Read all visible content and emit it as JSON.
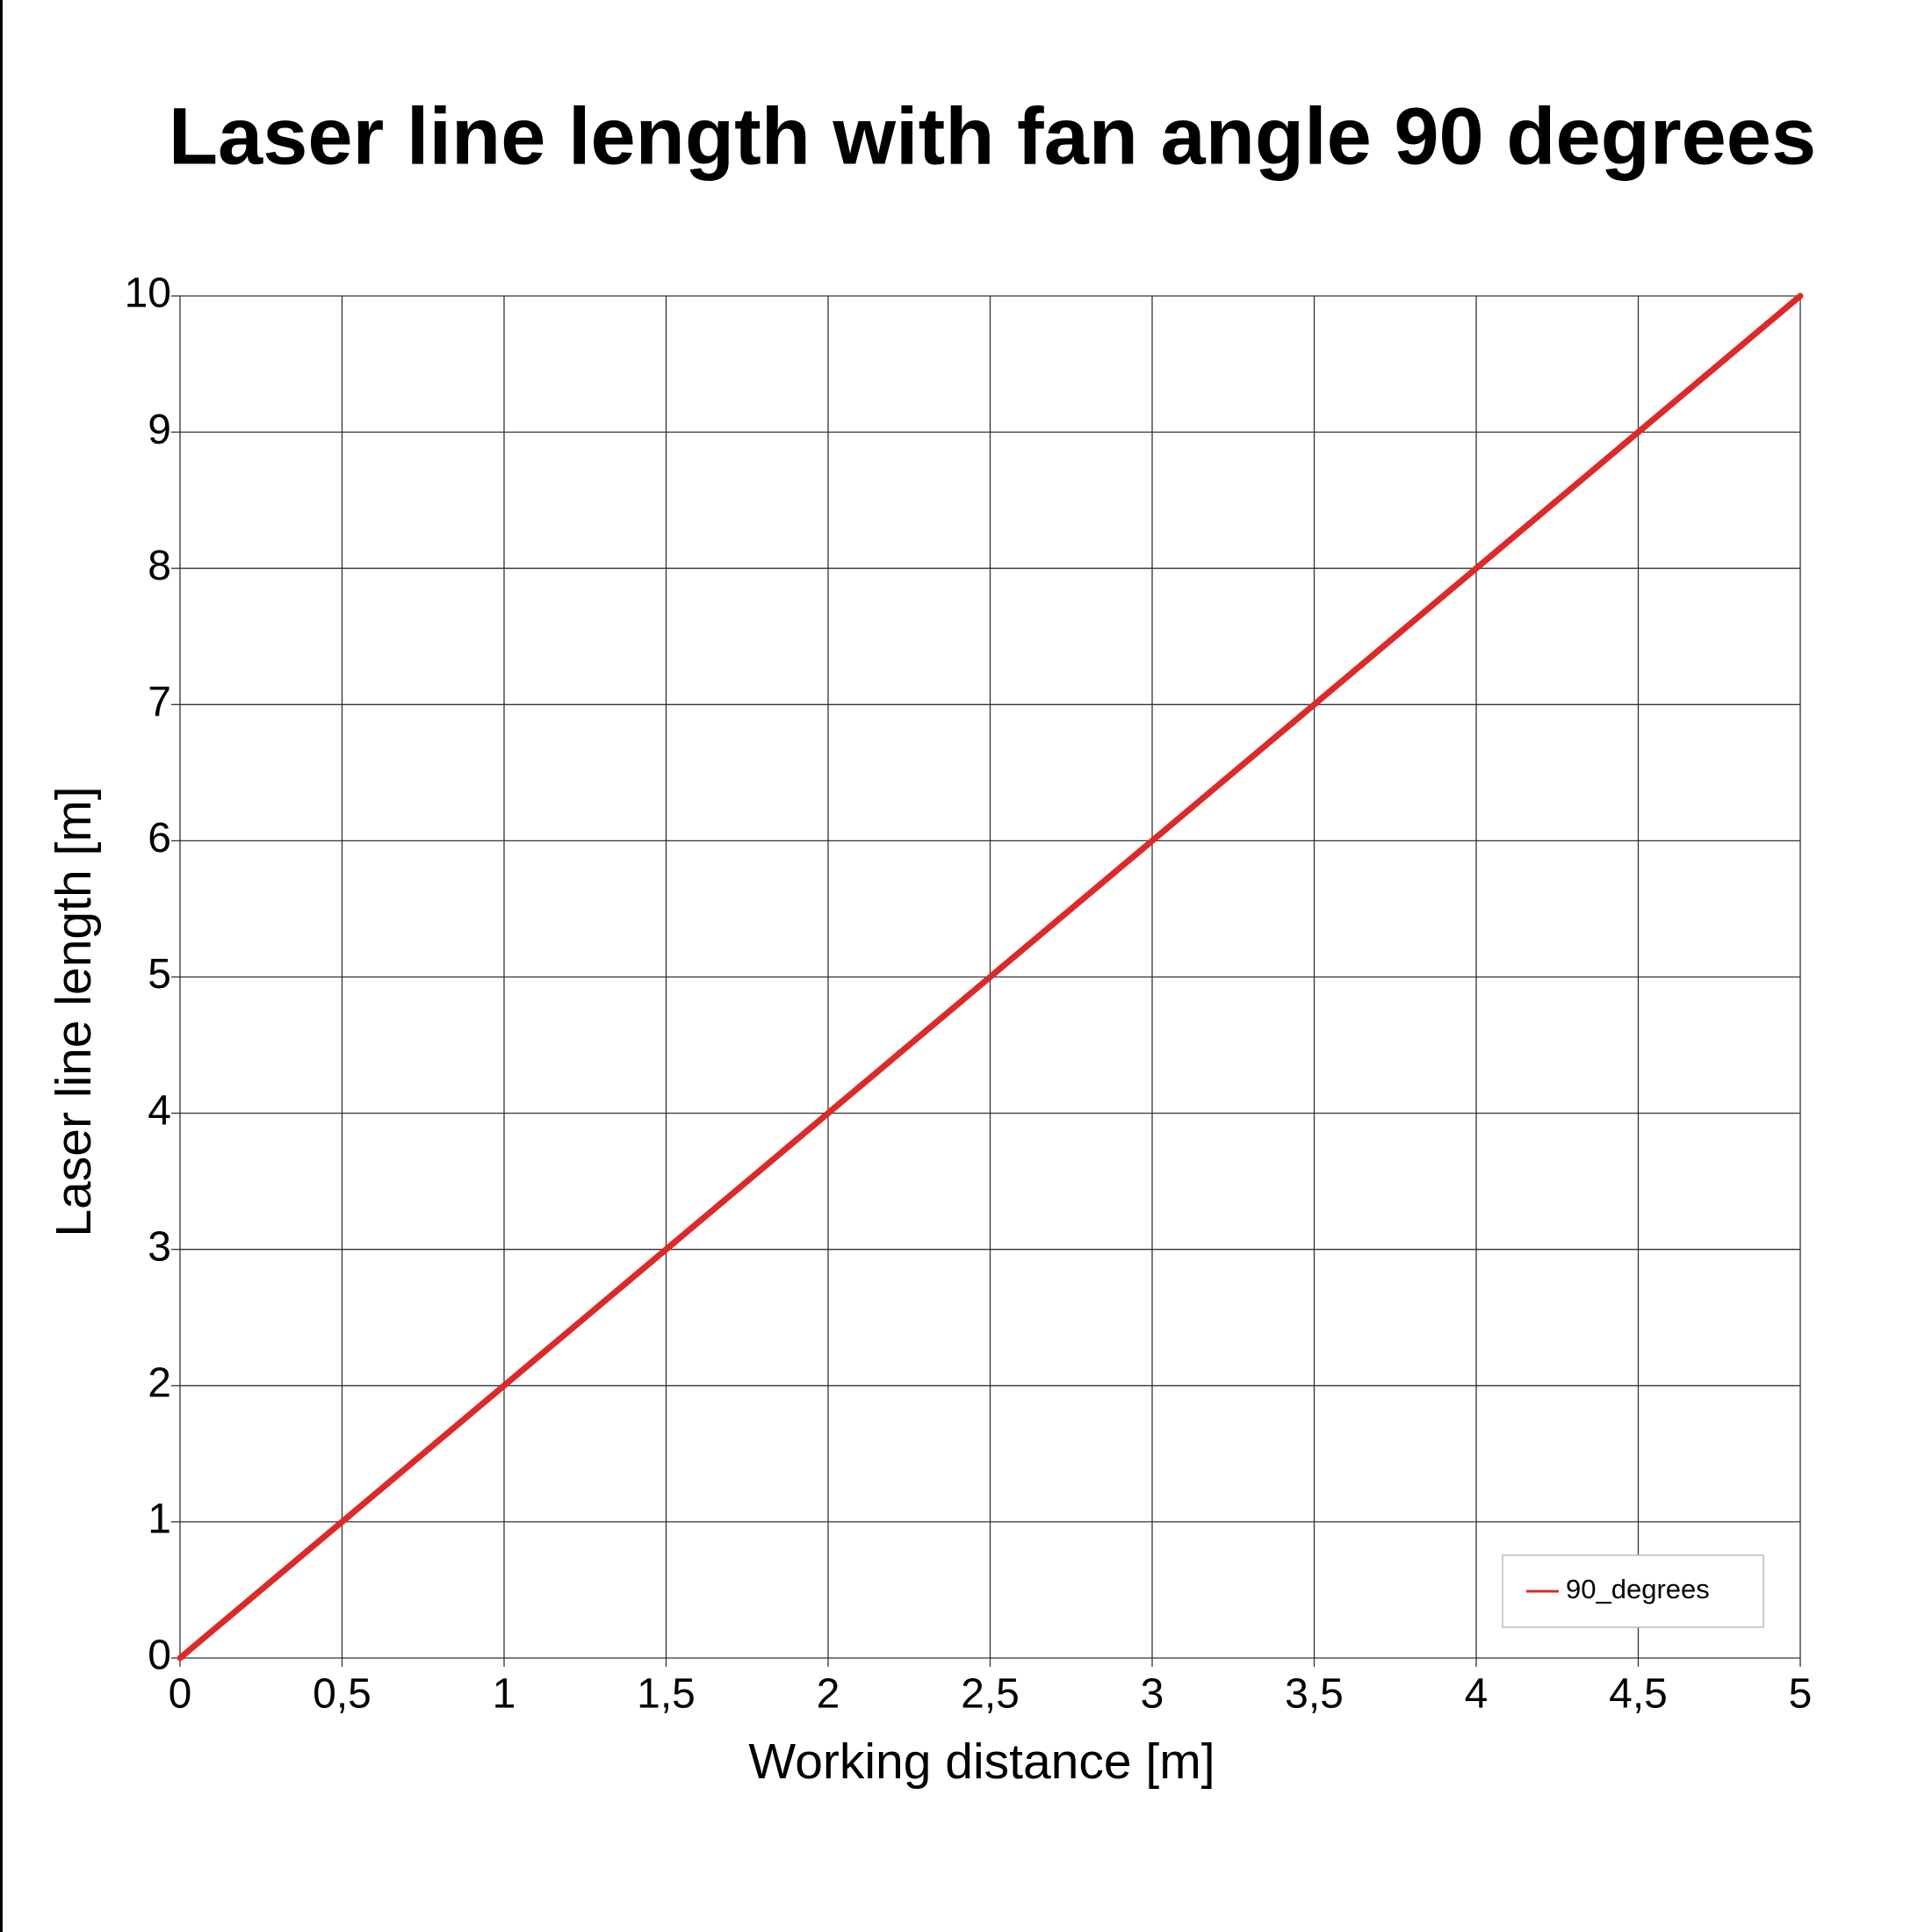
{
  "chart_data": {
    "type": "line",
    "title": "Laser line length with fan angle 90 degrees",
    "x_label": "Working distance [m]",
    "y_label": "Laser line length [m]",
    "x": [
      0,
      0.5,
      1,
      1.5,
      2,
      2.5,
      3,
      3.5,
      4,
      4.5,
      5
    ],
    "series": [
      {
        "name": "90_degrees",
        "color": "#dc2a2a",
        "values": [
          0,
          1,
          2,
          3,
          4,
          5,
          6,
          7,
          8,
          9,
          10
        ]
      }
    ],
    "xlim": [
      0,
      5
    ],
    "xticks": [
      0,
      {
        "value": 0.5,
        "label": "0,5"
      },
      1,
      {
        "value": 1.5,
        "label": "1,5"
      },
      2,
      {
        "value": 2.5,
        "label": "2,5"
      },
      3,
      {
        "value": 3.5,
        "label": "3,5"
      },
      4,
      {
        "value": 4.5,
        "label": "4,5"
      },
      5
    ],
    "ylim": [
      0,
      10
    ],
    "yticks": [
      0,
      1,
      2,
      3,
      4,
      5,
      6,
      7,
      8,
      9,
      10
    ],
    "grid": true,
    "legend": "lower right"
  }
}
